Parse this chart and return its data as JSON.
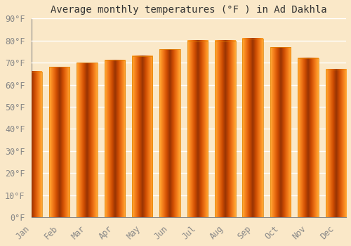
{
  "title": "Average monthly temperatures (°F ) in Ad Dakhla",
  "months": [
    "Jan",
    "Feb",
    "Mar",
    "Apr",
    "May",
    "Jun",
    "Jul",
    "Aug",
    "Sep",
    "Oct",
    "Nov",
    "Dec"
  ],
  "values": [
    66,
    68,
    70,
    71,
    73,
    76,
    80,
    80,
    81,
    77,
    72,
    67
  ],
  "bar_color_center": "#FFB732",
  "bar_color_edge": "#E08000",
  "background_color": "#FAE8C8",
  "plot_bg_color": "#FAE8C8",
  "grid_color": "#FFFFFF",
  "spine_color": "#888888",
  "ylim": [
    0,
    90
  ],
  "yticks": [
    0,
    10,
    20,
    30,
    40,
    50,
    60,
    70,
    80,
    90
  ],
  "title_fontsize": 10,
  "tick_fontsize": 8.5,
  "font_family": "monospace",
  "tick_color": "#888888"
}
